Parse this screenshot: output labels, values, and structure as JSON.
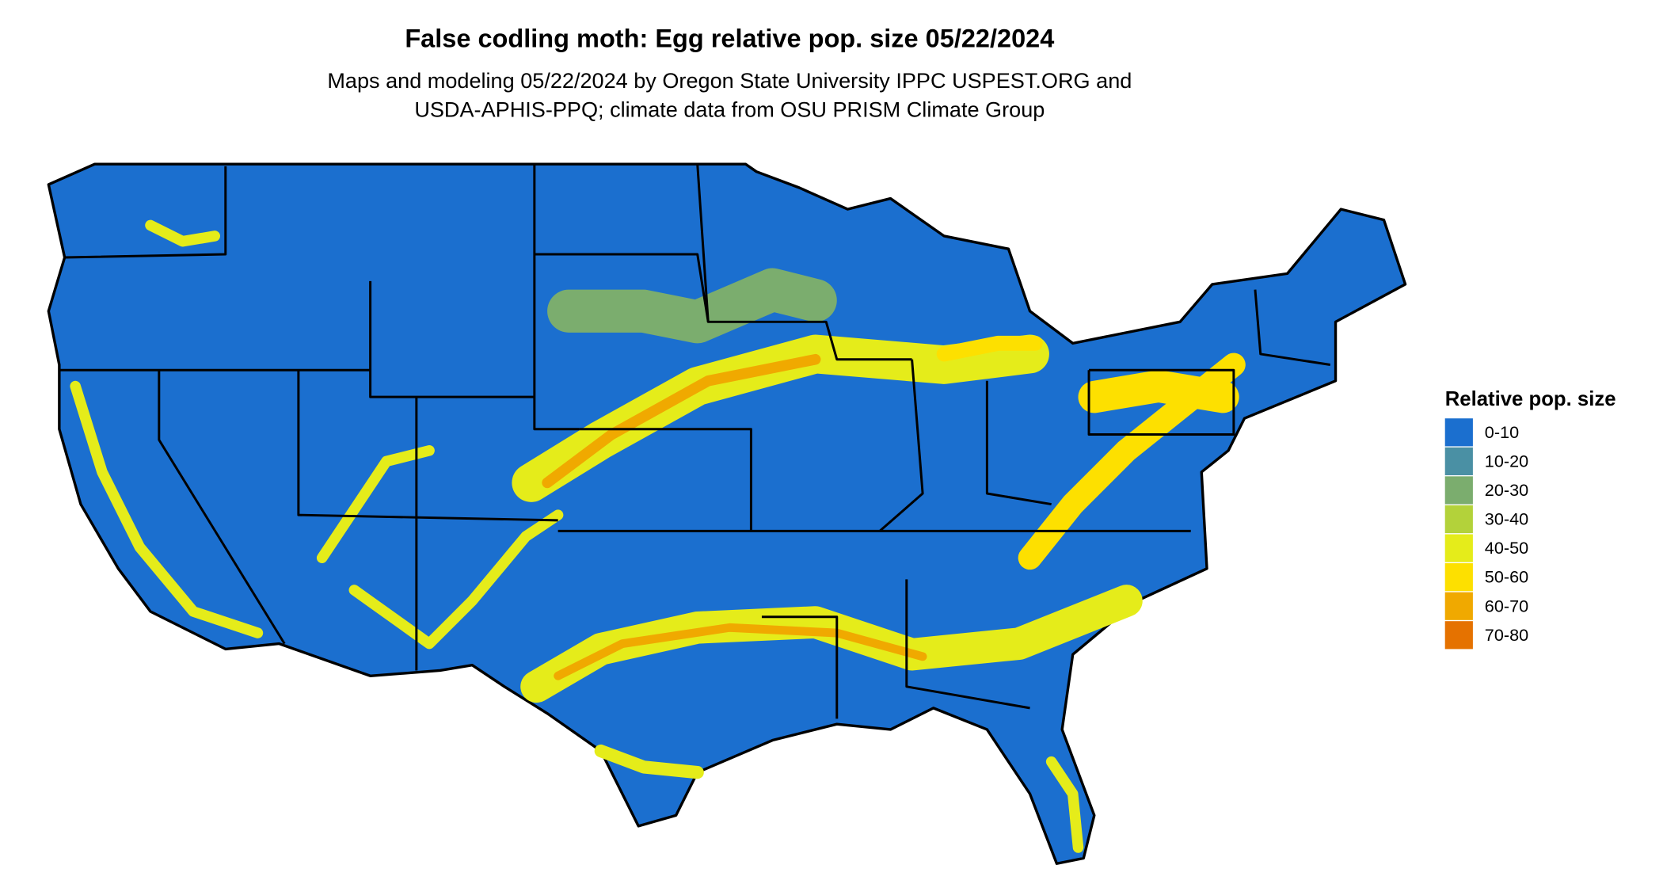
{
  "title": "False codling moth: Egg relative pop. size 05/22/2024",
  "subtitle": [
    "Maps and modeling 05/22/2024 by Oregon State University IPPC USPEST.ORG and",
    "USDA-APHIS-PPQ; climate data from OSU PRISM Climate Group"
  ],
  "legend": {
    "title": "Relative pop. size",
    "items": [
      {
        "label": "0-10",
        "color": "#1b6fcf"
      },
      {
        "label": "10-20",
        "color": "#4a90a4"
      },
      {
        "label": "20-30",
        "color": "#7bad6e"
      },
      {
        "label": "30-40",
        "color": "#b3d23a"
      },
      {
        "label": "40-50",
        "color": "#e5ec1a"
      },
      {
        "label": "50-60",
        "color": "#fde000"
      },
      {
        "label": "60-70",
        "color": "#f0a900"
      },
      {
        "label": "70-80",
        "color": "#e57200"
      }
    ]
  }
}
